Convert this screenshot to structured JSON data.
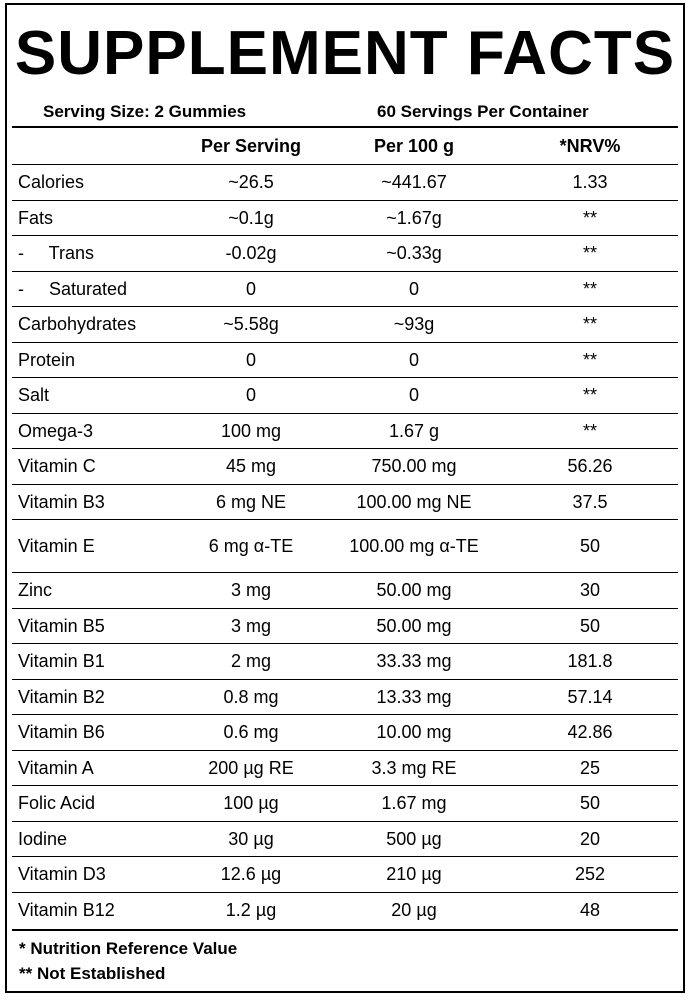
{
  "title": "SUPPLEMENT FACTS",
  "serving_size": "Serving Size: 2 Gummies",
  "servings_per_container": "60 Servings Per Container",
  "columns": [
    "",
    "Per Serving",
    "Per 100 g",
    "*NRV%"
  ],
  "rows": [
    [
      "Calories",
      "~26.5",
      "~441.67",
      "1.33"
    ],
    [
      "Fats",
      "~0.1g",
      "~1.67g",
      "**"
    ],
    [
      "-     Trans",
      "-0.02g",
      "~0.33g",
      "**"
    ],
    [
      "-     Saturated",
      "0",
      "0",
      "**"
    ],
    [
      "Carbohydrates",
      "~5.58g",
      "~93g",
      "**"
    ],
    [
      "Protein",
      "0",
      "0",
      "**"
    ],
    [
      "Salt",
      "0",
      "0",
      "**"
    ],
    [
      "Omega-3",
      "100 mg",
      "1.67 g",
      "**"
    ],
    [
      "Vitamin C",
      "45 mg",
      "750.00 mg",
      "56.26"
    ],
    [
      "Vitamin B3",
      "6 mg NE",
      "100.00 mg NE",
      "37.5"
    ],
    [
      "Vitamin E",
      "6 mg α-TE",
      "100.00 mg α-TE",
      "50"
    ],
    [
      "Zinc",
      "3 mg",
      "50.00 mg",
      "30"
    ],
    [
      "Vitamin B5",
      "3 mg",
      "50.00 mg",
      "50"
    ],
    [
      "Vitamin B1",
      "2 mg",
      "33.33 mg",
      "181.8"
    ],
    [
      "Vitamin B2",
      "0.8 mg",
      "13.33 mg",
      "57.14"
    ],
    [
      "Vitamin B6",
      "0.6 mg",
      "10.00 mg",
      "42.86"
    ],
    [
      "Vitamin A",
      "200 µg RE",
      "3.3 mg RE",
      "25"
    ],
    [
      "Folic Acid",
      "100 µg",
      "1.67 mg",
      "50"
    ],
    [
      "Iodine",
      "30 µg",
      "500 µg",
      "20"
    ],
    [
      "Vitamin D3",
      "12.6 µg",
      "210 µg",
      "252"
    ],
    [
      "Vitamin B12",
      "1.2 µg",
      "20 µg",
      "48"
    ]
  ],
  "footnotes": [
    "* Nutrition Reference Value",
    "** Not Established"
  ]
}
